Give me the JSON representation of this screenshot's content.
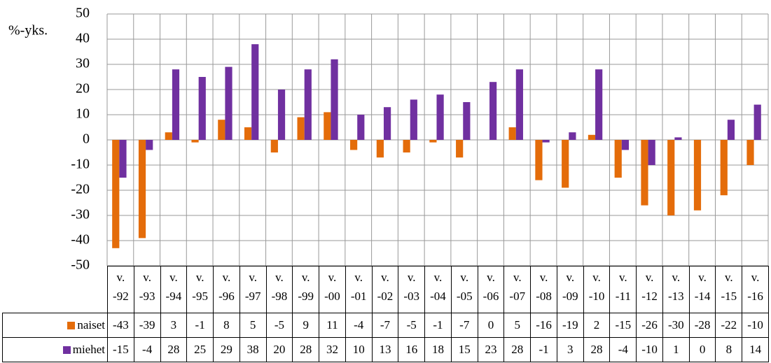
{
  "chart_data": {
    "type": "bar",
    "y_label": "%-yks.",
    "categories": [
      "v. -92",
      "v. -93",
      "v. -94",
      "v. -95",
      "v. -96",
      "v. -97",
      "v. -98",
      "v. -99",
      "v. -00",
      "v. -01",
      "v. -02",
      "v. -03",
      "v. -04",
      "v. -05",
      "v. -06",
      "v. -07",
      "v. -08",
      "v. -09",
      "v. -10",
      "v. -11",
      "v. -12",
      "v. -13",
      "v. -14",
      "v. -15",
      "v. -16"
    ],
    "series": [
      {
        "name": "naiset",
        "color": "#e46c0a",
        "values": [
          -43,
          -39,
          3,
          -1,
          8,
          5,
          -5,
          9,
          11,
          -4,
          -7,
          -5,
          -1,
          -7,
          0,
          5,
          -16,
          -19,
          2,
          -15,
          -26,
          -30,
          -28,
          -22,
          -10
        ]
      },
      {
        "name": "miehet",
        "color": "#7030a0",
        "values": [
          -15,
          -4,
          28,
          25,
          29,
          38,
          20,
          28,
          32,
          10,
          13,
          16,
          18,
          15,
          23,
          28,
          -1,
          3,
          28,
          -4,
          -10,
          1,
          0,
          8,
          14
        ]
      }
    ],
    "ylim": [
      -50,
      50
    ],
    "yticks": [
      -50,
      -40,
      -30,
      -20,
      -10,
      0,
      10,
      20,
      30,
      40,
      50
    ],
    "grid": true,
    "data_table": true
  }
}
